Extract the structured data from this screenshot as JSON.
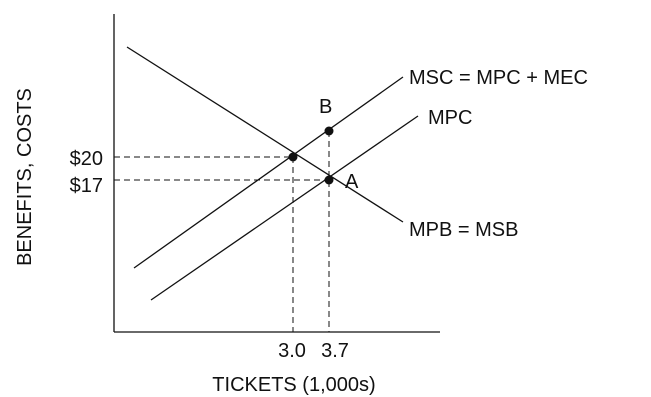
{
  "axes": {
    "y_label": "BENEFITS, COSTS",
    "x_label": "TICKETS (1,000s)",
    "y_ticks": [
      "$20",
      "$17"
    ],
    "x_ticks": [
      "3.0",
      "3.7"
    ]
  },
  "curves": {
    "msc_label": "MSC = MPC + MEC",
    "mpc_label": "MPC",
    "mpb_label": "MPB = MSB"
  },
  "points": {
    "a_label": "A",
    "b_label": "B"
  }
}
